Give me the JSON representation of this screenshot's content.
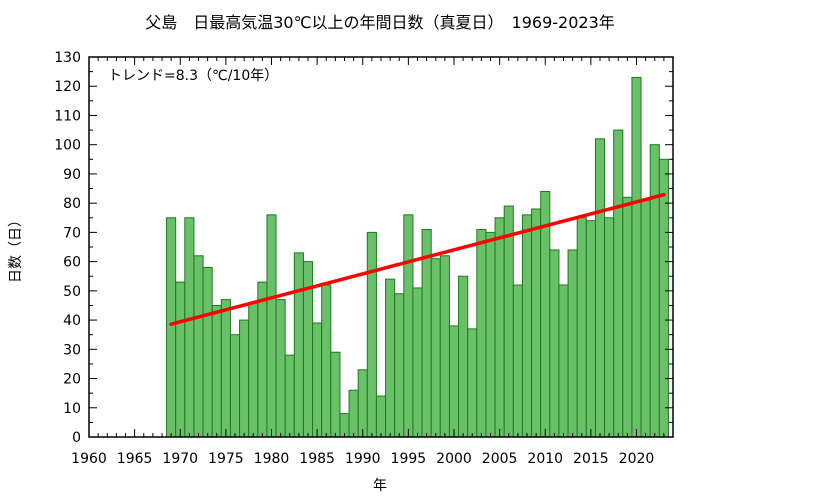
{
  "chart_data": {
    "type": "bar",
    "title": "父島　日最高気温30℃以上の年間日数（真夏日）　1969-2023年",
    "xlabel": "年",
    "ylabel": "日数（日）",
    "annotation": "トレンド=8.3（℃/10年）",
    "xlim": [
      1960,
      2024
    ],
    "ylim": [
      0,
      130
    ],
    "xticks": [
      "1960",
      "1965",
      "1970",
      "1975",
      "1980",
      "1985",
      "1990",
      "1995",
      "2000",
      "2005",
      "2010",
      "2015",
      "2020"
    ],
    "yticks": [
      "0",
      "10",
      "20",
      "30",
      "40",
      "50",
      "60",
      "70",
      "80",
      "90",
      "100",
      "110",
      "120",
      "130"
    ],
    "grid": false,
    "bar_color": "#6abf69",
    "bar_edge_color": "#1f7a1f",
    "trend_color": "#ff0000",
    "x": [
      1969,
      1970,
      1971,
      1972,
      1973,
      1974,
      1975,
      1976,
      1977,
      1978,
      1979,
      1980,
      1981,
      1982,
      1983,
      1984,
      1985,
      1986,
      1987,
      1988,
      1989,
      1990,
      1991,
      1992,
      1993,
      1994,
      1995,
      1996,
      1997,
      1998,
      1999,
      2000,
      2001,
      2002,
      2003,
      2004,
      2005,
      2006,
      2007,
      2008,
      2009,
      2010,
      2011,
      2012,
      2013,
      2014,
      2015,
      2016,
      2017,
      2018,
      2019,
      2020,
      2021,
      2022,
      2023
    ],
    "values": [
      75,
      53,
      75,
      62,
      58,
      45,
      47,
      35,
      40,
      46,
      53,
      76,
      47,
      28,
      63,
      60,
      39,
      52,
      29,
      8,
      16,
      23,
      70,
      14,
      54,
      49,
      76,
      51,
      71,
      61,
      62,
      38,
      55,
      37,
      71,
      70,
      75,
      79,
      52,
      76,
      78,
      84,
      64,
      52,
      64,
      75,
      74,
      102,
      75,
      105,
      82,
      123,
      81,
      100,
      95
    ],
    "trend": {
      "x": [
        1969,
        2023
      ],
      "y": [
        38.6,
        82.9
      ]
    }
  }
}
